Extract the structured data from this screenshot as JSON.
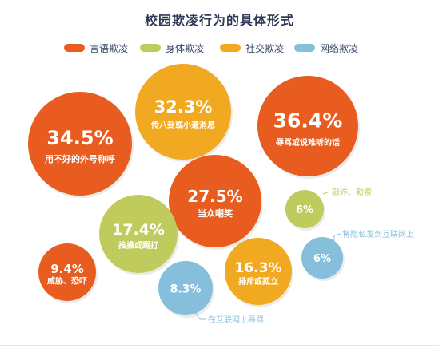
{
  "chart_data": {
    "type": "bubble",
    "title": "校园欺凌行为的具体形式",
    "legend_position": "top",
    "series": [
      {
        "name": "言语欺凌",
        "color": "#e85d1f"
      },
      {
        "name": "身体欺凌",
        "color": "#bfcb5c"
      },
      {
        "name": "社交欺凌",
        "color": "#f2a922"
      },
      {
        "name": "网络欺凌",
        "color": "#86bfdc"
      }
    ],
    "points": [
      {
        "label": "用不好的外号称呼",
        "value": 34.5,
        "display": "34.5%",
        "series": "言语欺凌"
      },
      {
        "label": "传八卦或小道消息",
        "value": 32.3,
        "display": "32.3%",
        "series": "社交欺凌"
      },
      {
        "label": "辱骂或说难听的话",
        "value": 36.4,
        "display": "36.4%",
        "series": "言语欺凌"
      },
      {
        "label": "当众嘲笑",
        "value": 27.5,
        "display": "27.5%",
        "series": "言语欺凌"
      },
      {
        "label": "推搡或踢打",
        "value": 17.4,
        "display": "17.4%",
        "series": "身体欺凌"
      },
      {
        "label": "敲诈、勒索",
        "value": 6,
        "display": "6%",
        "series": "身体欺凌"
      },
      {
        "label": "将隐私发到互联网上",
        "value": 6,
        "display": "6%",
        "series": "网络欺凌"
      },
      {
        "label": "威胁、恐吓",
        "value": 9.4,
        "display": "9.4%",
        "series": "言语欺凌"
      },
      {
        "label": "排斥或孤立",
        "value": 16.3,
        "display": "16.3%",
        "series": "社交欺凌"
      },
      {
        "label": "在互联网上辱骂",
        "value": 8.3,
        "display": "8.3%",
        "series": "网络欺凌"
      }
    ]
  }
}
